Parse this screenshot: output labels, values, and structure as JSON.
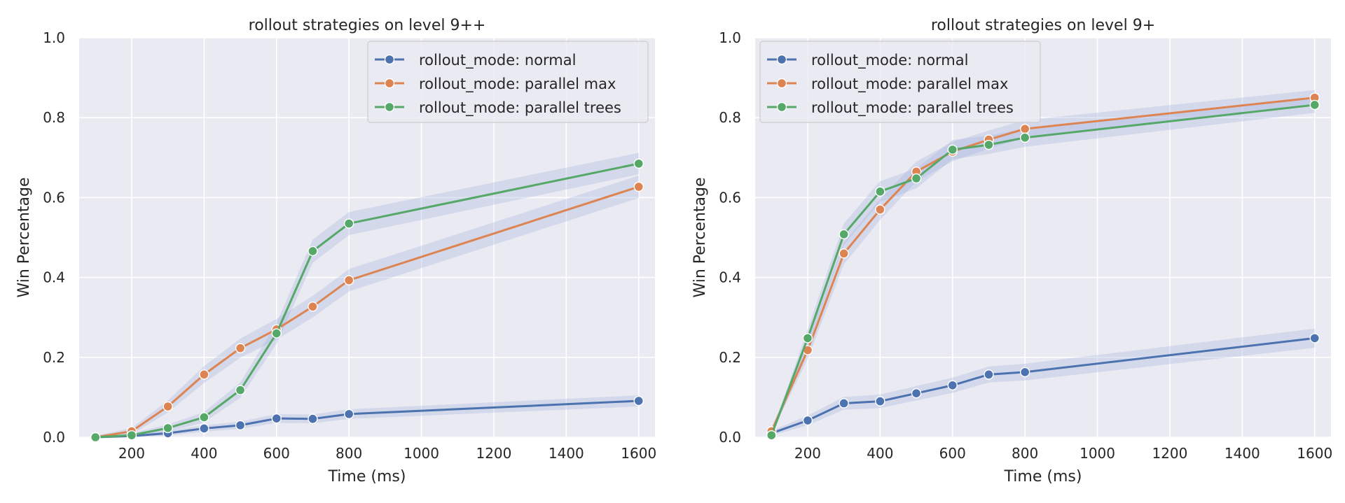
{
  "chart_data": [
    {
      "type": "line",
      "title": "rollout strategies on level 9++",
      "xlabel": "Time (ms)",
      "ylabel": "Win Percentage",
      "xlim": [
        55,
        1645
      ],
      "ylim": [
        0,
        1.0
      ],
      "xticks": [
        200,
        400,
        600,
        800,
        1000,
        1200,
        1400,
        1600
      ],
      "xtick_labels": [
        "200",
        "400",
        "600",
        "800",
        "1000",
        "1200",
        "1400",
        "1600"
      ],
      "yticks": [
        0,
        0.2,
        0.4,
        0.6,
        0.8,
        1.0
      ],
      "ytick_labels": [
        "0.0",
        "0.2",
        "0.4",
        "0.6",
        "0.8",
        "1.0"
      ],
      "grid": true,
      "legend_position": "top-right",
      "x": [
        100,
        200,
        300,
        400,
        500,
        600,
        700,
        800,
        1600
      ],
      "series": [
        {
          "name": "rollout_mode: normal",
          "color": "#4c72b0",
          "values": [
            0.0,
            0.003,
            0.01,
            0.022,
            0.03,
            0.047,
            0.046,
            0.058,
            0.091
          ],
          "ci": [
            0.004,
            0.004,
            0.006,
            0.008,
            0.009,
            0.011,
            0.011,
            0.012,
            0.014
          ]
        },
        {
          "name": "rollout_mode: parallel max",
          "color": "#dd8452",
          "values": [
            0.0,
            0.015,
            0.077,
            0.157,
            0.223,
            0.27,
            0.327,
            0.393,
            0.627
          ],
          "ci": [
            0.004,
            0.008,
            0.015,
            0.021,
            0.024,
            0.026,
            0.027,
            0.028,
            0.028
          ]
        },
        {
          "name": "rollout_mode: parallel trees",
          "color": "#55a868",
          "values": [
            0.0,
            0.005,
            0.023,
            0.05,
            0.118,
            0.26,
            0.466,
            0.535,
            0.685
          ],
          "ci": [
            0.004,
            0.005,
            0.009,
            0.013,
            0.019,
            0.026,
            0.029,
            0.029,
            0.027
          ]
        }
      ]
    },
    {
      "type": "line",
      "title": "rollout strategies on level 9+",
      "xlabel": "Time (ms)",
      "ylabel": "Win Percentage",
      "xlim": [
        55,
        1645
      ],
      "ylim": [
        0,
        1.0
      ],
      "xticks": [
        200,
        400,
        600,
        800,
        1000,
        1200,
        1400,
        1600
      ],
      "xtick_labels": [
        "200",
        "400",
        "600",
        "800",
        "1000",
        "1200",
        "1400",
        "1600"
      ],
      "yticks": [
        0,
        0.2,
        0.4,
        0.6,
        0.8,
        1.0
      ],
      "ytick_labels": [
        "0.0",
        "0.2",
        "0.4",
        "0.6",
        "0.8",
        "1.0"
      ],
      "grid": true,
      "legend_position": "top-left",
      "x": [
        100,
        200,
        300,
        400,
        500,
        600,
        700,
        800,
        1600
      ],
      "series": [
        {
          "name": "rollout_mode: normal",
          "color": "#4c72b0",
          "values": [
            0.01,
            0.042,
            0.085,
            0.09,
            0.11,
            0.13,
            0.157,
            0.163,
            0.248
          ],
          "ci": [
            0.006,
            0.012,
            0.016,
            0.017,
            0.018,
            0.019,
            0.02,
            0.021,
            0.024
          ]
        },
        {
          "name": "rollout_mode: parallel max",
          "color": "#dd8452",
          "values": [
            0.015,
            0.218,
            0.46,
            0.57,
            0.665,
            0.715,
            0.745,
            0.772,
            0.85
          ],
          "ci": [
            0.007,
            0.022,
            0.027,
            0.026,
            0.025,
            0.024,
            0.023,
            0.022,
            0.019
          ]
        },
        {
          "name": "rollout_mode: parallel trees",
          "color": "#55a868",
          "values": [
            0.005,
            0.248,
            0.508,
            0.615,
            0.648,
            0.72,
            0.732,
            0.75,
            0.832
          ],
          "ci": [
            0.005,
            0.023,
            0.027,
            0.026,
            0.025,
            0.024,
            0.023,
            0.023,
            0.02
          ]
        }
      ]
    }
  ]
}
